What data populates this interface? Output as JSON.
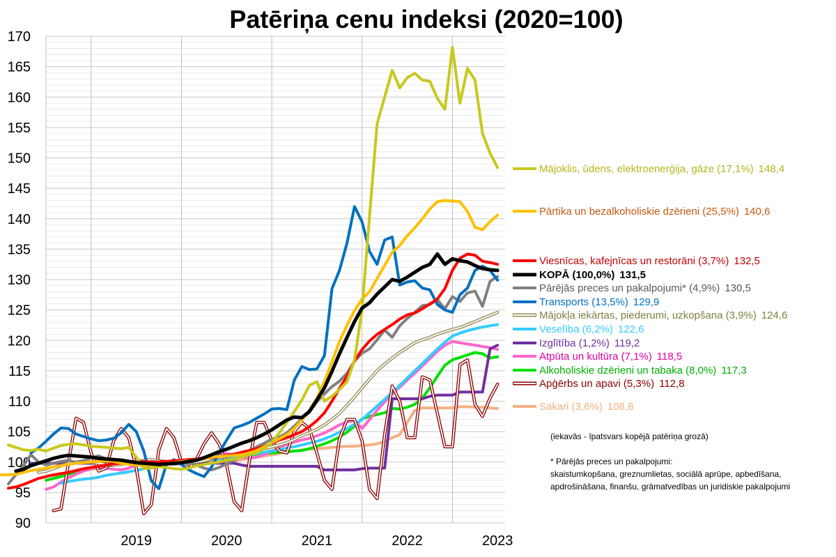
{
  "chart_data": {
    "type": "line",
    "title": "Patēriņa cenu indeksi (2020=100)",
    "xlabel": "",
    "ylabel": "",
    "ylim": [
      90,
      170
    ],
    "yticks": [
      90,
      95,
      100,
      105,
      110,
      115,
      120,
      125,
      130,
      135,
      140,
      145,
      150,
      155,
      160,
      165,
      170
    ],
    "year_labels": [
      "2019",
      "2020",
      "2021",
      "2022",
      "2023"
    ],
    "x_range": [
      "2018-07",
      "2023-07"
    ],
    "x_start_month": "2018-07",
    "grid": "horizontal minor lines, vertical year separators",
    "legend_placement": "right, at series ends",
    "series": [
      {
        "name": "Mājoklis, ūdens, elektroenerģija, gāze (17,1%)",
        "end_label": "148,4",
        "color": "#c8c81c",
        "text_color": "#b5b51a",
        "bold": false,
        "style": "solid",
        "values": [
          102.8,
          102.4,
          102.0,
          101.9,
          102.1,
          101.8,
          102.3,
          102.7,
          102.9,
          103.0,
          102.8,
          102.6,
          102.5,
          102.4,
          102.3,
          102.2,
          102.4,
          100.8,
          98.9,
          99.0,
          99.3,
          99.1,
          98.9,
          98.8,
          99.0,
          99.4,
          99.6,
          99.8,
          100.0,
          100.3,
          100.5,
          100.8,
          101.2,
          101.5,
          102.2,
          103.2,
          104.8,
          106.5,
          108.3,
          110.2,
          112.6,
          113.2,
          110.0,
          110.8,
          111.9,
          113.2,
          116.8,
          125.0,
          140.5,
          155.6,
          160.0,
          164.4,
          161.5,
          163.2,
          163.9,
          162.8,
          162.6,
          159.8,
          158.0,
          168.2,
          159.0,
          164.7,
          162.8,
          154.0,
          150.8,
          148.4
        ]
      },
      {
        "name": "Pārtika un bezalkoholiskie dzērieni (25,5%)",
        "end_label": "140,6",
        "color": "#ffc000",
        "text_color": "#c55a11",
        "bold": false,
        "style": "solid",
        "values": [
          97.9,
          97.9,
          98.0,
          98.3,
          98.6,
          98.8,
          99.0,
          99.2,
          99.4,
          99.6,
          99.8,
          99.9,
          100.0,
          100.1,
          100.2,
          100.1,
          99.8,
          99.6,
          99.5,
          99.4,
          99.5,
          99.6,
          99.8,
          99.9,
          100.1,
          100.2,
          100.4,
          100.5,
          100.8,
          100.9,
          101.0,
          101.1,
          101.2,
          101.5,
          101.9,
          102.5,
          103.2,
          103.8,
          104.5,
          105.5,
          106.9,
          108.5,
          110.5,
          113.2,
          116.5,
          119.8,
          122.5,
          124.9,
          126.8,
          128.0,
          130.2,
          132.3,
          134.5,
          135.6,
          137.2,
          138.5,
          140.0,
          141.6,
          142.8,
          143.0,
          142.9,
          142.8,
          141.2,
          138.6,
          138.2,
          139.5,
          140.6
        ]
      },
      {
        "name": "Viesnīcas, kafejnīcas un restorāni (3,7%)",
        "end_label": "132,5",
        "color": "#ff0000",
        "text_color": "#c00000",
        "bold": false,
        "style": "solid",
        "values": [
          95.7,
          95.9,
          96.3,
          96.8,
          97.3,
          97.6,
          97.9,
          98.1,
          98.3,
          98.6,
          98.9,
          99.1,
          99.3,
          99.5,
          99.7,
          99.8,
          99.9,
          100.0,
          100.1,
          100.0,
          100.0,
          100.1,
          100.2,
          100.3,
          100.4,
          100.5,
          100.6,
          100.7,
          100.9,
          101.1,
          101.3,
          101.6,
          101.9,
          102.2,
          102.6,
          103.1,
          103.6,
          104.0,
          104.5,
          105.0,
          105.8,
          106.8,
          108.1,
          110.0,
          112.1,
          114.1,
          116.6,
          118.5,
          119.9,
          121.0,
          121.8,
          122.6,
          123.5,
          124.2,
          124.5,
          125.2,
          126.0,
          126.8,
          128.5,
          131.5,
          133.5,
          134.2,
          134.0,
          133.0,
          132.8,
          132.5
        ]
      },
      {
        "name": "KOPĀ (100,0%)",
        "end_label": "131,5",
        "color": "#000000",
        "text_color": "#000000",
        "bold": true,
        "style": "solid",
        "values": [
          98.5,
          98.8,
          99.4,
          99.8,
          100.2,
          100.6,
          100.9,
          101.1,
          101.0,
          100.9,
          100.8,
          100.6,
          100.5,
          100.4,
          100.3,
          100.1,
          99.9,
          99.8,
          99.7,
          99.6,
          99.7,
          99.8,
          99.9,
          100.1,
          100.3,
          100.7,
          101.2,
          101.7,
          102.1,
          102.6,
          103.1,
          103.5,
          104.0,
          104.6,
          105.3,
          106.1,
          106.9,
          107.4,
          107.3,
          108.3,
          110.2,
          112.2,
          114.9,
          117.8,
          120.5,
          123.1,
          125.3,
          126.2,
          127.6,
          128.8,
          130.0,
          129.7,
          130.4,
          131.2,
          132.0,
          132.5,
          134.2,
          132.5,
          133.4,
          133.1,
          132.9,
          132.3,
          131.8,
          131.6,
          131.5
        ]
      },
      {
        "name": "Pārējās preces un pakalpojumi* (4,9%)",
        "end_label": "130,5",
        "color": "#808080",
        "text_color": "#595959",
        "bold": false,
        "style": "solid",
        "values": [
          96.4,
          97.9,
          99.4,
          101.2,
          100.0,
          99.5,
          99.8,
          100.1,
          100.3,
          99.9,
          100.2,
          100.7,
          101.0,
          100.5,
          100.2,
          100.0,
          99.8,
          99.7,
          99.9,
          100.1,
          100.0,
          99.7,
          99.6,
          99.8,
          99.9,
          99.5,
          99.0,
          98.7,
          99.1,
          99.7,
          100.3,
          101.1,
          101.9,
          102.5,
          103.1,
          103.8,
          104.1,
          104.8,
          105.9,
          107.1,
          108.2,
          109.9,
          111.2,
          112.4,
          113.3,
          114.6,
          116.6,
          117.9,
          118.6,
          120.1,
          121.7,
          120.5,
          122.4,
          123.6,
          124.6,
          125.7,
          125.9,
          126.7,
          125.2,
          127.2,
          126.4,
          127.8,
          128.1,
          125.6,
          129.7,
          130.5
        ]
      },
      {
        "name": "Transports (13,5%)",
        "end_label": "129,9",
        "color": "#0070c0",
        "text_color": "#0070c0",
        "bold": false,
        "style": "solid",
        "values": [
          101.5,
          102.3,
          103.4,
          104.6,
          105.6,
          105.5,
          104.6,
          104.2,
          103.8,
          103.5,
          103.6,
          103.9,
          104.8,
          106.2,
          105.0,
          101.8,
          96.9,
          95.6,
          99.6,
          100.4,
          99.6,
          98.7,
          98.1,
          97.6,
          99.2,
          101.5,
          103.6,
          105.6,
          106.0,
          106.5,
          107.2,
          107.9,
          108.7,
          108.8,
          108.6,
          113.5,
          115.7,
          115.2,
          115.3,
          117.5,
          128.5,
          131.5,
          136.0,
          142.0,
          139.5,
          134.6,
          132.5,
          136.5,
          137.0,
          129.1,
          129.6,
          129.8,
          128.6,
          128.3,
          125.9,
          125.0,
          124.6,
          127.5,
          128.6,
          131.5,
          132.2,
          131.5,
          129.9
        ]
      },
      {
        "name": "Mājokļa iekārtas, piederumi, uzkopšana (3,9%)",
        "end_label": "124,6",
        "color": "#948a54",
        "text_color": "#7f7f3f",
        "bold": false,
        "style": "outline",
        "values": [
          98.3,
          98.5,
          98.9,
          99.4,
          99.8,
          100.0,
          100.2,
          100.0,
          99.8,
          99.6,
          99.5,
          99.6,
          99.9,
          100.1,
          100.3,
          100.4,
          100.2,
          100.0,
          99.9,
          99.8,
          99.8,
          100.0,
          100.2,
          100.5,
          100.7,
          100.9,
          101.2,
          101.3,
          101.5,
          101.8,
          102.2,
          102.5,
          102.8,
          103.2,
          103.7,
          104.3,
          104.8,
          105.4,
          106.1,
          107.0,
          108.0,
          109.3,
          110.7,
          112.2,
          113.6,
          115.0,
          116.1,
          117.1,
          118.0,
          118.8,
          119.6,
          120.1,
          120.5,
          121.0,
          121.4,
          121.8,
          122.1,
          122.6,
          123.1,
          123.6,
          124.1,
          124.6
        ]
      },
      {
        "name": "Veselība (6,2%)",
        "end_label": "122,6",
        "color": "#33ccff",
        "text_color": "#33ccff",
        "bold": false,
        "style": "solid",
        "values": [
          96.5,
          96.8,
          97.0,
          97.2,
          97.3,
          97.5,
          97.8,
          98.0,
          98.2,
          98.4,
          98.6,
          98.9,
          99.2,
          99.4,
          99.6,
          99.8,
          99.9,
          100.0,
          100.1,
          100.2,
          100.4,
          100.5,
          100.6,
          100.8,
          101.0,
          101.2,
          101.4,
          101.6,
          101.8,
          102.0,
          102.3,
          102.5,
          102.8,
          103.1,
          103.4,
          103.8,
          104.3,
          104.9,
          105.5,
          106.2,
          107.0,
          108.1,
          109.2,
          110.3,
          111.4,
          112.6,
          113.8,
          115.0,
          116.2,
          117.4,
          118.6,
          119.7,
          120.7,
          121.2,
          121.6,
          121.9,
          122.2,
          122.4,
          122.6
        ]
      },
      {
        "name": "Izglītība (1,2%)",
        "end_label": "119,2",
        "color": "#7030a0",
        "text_color": "#7030a0",
        "bold": false,
        "style": "solid",
        "values": [
          99.8,
          99.8,
          99.8,
          99.8,
          99.8,
          99.8,
          99.8,
          99.8,
          99.8,
          99.8,
          99.8,
          99.8,
          99.8,
          99.8,
          99.8,
          99.8,
          99.8,
          99.8,
          99.8,
          99.8,
          99.8,
          99.8,
          99.8,
          99.8,
          99.8,
          99.8,
          99.8,
          99.8,
          99.5,
          99.3,
          99.3,
          99.3,
          99.3,
          99.3,
          99.3,
          99.3,
          99.3,
          99.3,
          99.3,
          98.7,
          98.7,
          98.7,
          98.7,
          98.7,
          98.9,
          99.0,
          99.0,
          99.0,
          110.4,
          110.4,
          110.4,
          110.4,
          110.4,
          110.8,
          111.0,
          111.0,
          111.0,
          111.5,
          111.5,
          111.5,
          111.5,
          118.6,
          119.2
        ]
      },
      {
        "name": "Atpūta un kultūra (7,1%)",
        "end_label": "118,5",
        "color": "#ff66cc",
        "text_color": "#e000a0",
        "bold": false,
        "style": "solid",
        "values": [
          95.5,
          95.9,
          96.7,
          97.4,
          98.0,
          98.5,
          98.9,
          99.2,
          99.0,
          98.8,
          98.7,
          99.0,
          99.5,
          99.9,
          100.2,
          100.3,
          100.1,
          99.8,
          99.6,
          99.8,
          100.2,
          100.6,
          101.0,
          101.3,
          101.4,
          101.1,
          100.8,
          100.6,
          100.8,
          101.2,
          101.8,
          102.4,
          102.9,
          103.3,
          103.6,
          103.9,
          104.3,
          104.8,
          105.4,
          106.1,
          106.6,
          106.8,
          105.5,
          107.0,
          108.5,
          109.9,
          111.2,
          112.3,
          113.5,
          114.6,
          115.8,
          117.0,
          118.2,
          119.2,
          119.8,
          119.6,
          119.4,
          119.2,
          119.0,
          118.8,
          118.5
        ]
      },
      {
        "name": "Alkoholiskie dzērieni un tabaka (8,0%)",
        "end_label": "117,3",
        "color": "#00e000",
        "text_color": "#00b000",
        "bold": false,
        "style": "solid",
        "values": [
          97.0,
          97.3,
          97.6,
          98.0,
          98.4,
          98.7,
          98.9,
          99.1,
          99.3,
          99.5,
          99.7,
          99.9,
          100.0,
          100.1,
          100.2,
          100.1,
          99.9,
          99.8,
          99.7,
          99.9,
          100.1,
          100.3,
          100.5,
          100.6,
          100.6,
          100.7,
          100.9,
          101.1,
          101.3,
          101.4,
          101.5,
          101.6,
          101.7,
          101.8,
          101.9,
          102.2,
          102.6,
          103.0,
          103.5,
          104.1,
          104.9,
          105.9,
          107.1,
          107.5,
          107.8,
          108.1,
          108.8,
          108.7,
          109.0,
          109.5,
          110.5,
          112.2,
          114.1,
          115.9,
          116.8,
          117.2,
          117.6,
          118.0,
          117.8,
          117.1,
          117.3
        ]
      },
      {
        "name": "Apģērbs un apavi (5,3%)",
        "end_label": "112,8",
        "color": "#8b0000",
        "text_color": "#8b0000",
        "bold": false,
        "style": "outline",
        "values": [
          92.0,
          92.3,
          100.0,
          107.2,
          106.5,
          101.5,
          98.5,
          99.0,
          103.5,
          105.5,
          104.0,
          99.0,
          91.5,
          93.0,
          102.0,
          105.5,
          104.0,
          100.0,
          99.0,
          100.5,
          103.0,
          104.8,
          103.0,
          99.5,
          93.5,
          92.0,
          100.0,
          106.5,
          106.5,
          103.5,
          101.8,
          101.5,
          105.0,
          106.5,
          105.5,
          101.5,
          97.0,
          95.5,
          103.8,
          107.0,
          107.0,
          103.5,
          95.5,
          94.0,
          104.5,
          112.5,
          110.0,
          104.0,
          104.0,
          114.0,
          113.5,
          108.0,
          102.5,
          102.5,
          116.0,
          116.8,
          109.5,
          107.5,
          110.5,
          112.8
        ]
      },
      {
        "name": "Sakari (3,6%)",
        "end_label": "108,8",
        "color": "#f4b183",
        "text_color": "#f4b183",
        "bold": false,
        "style": "solid",
        "values": [
          97.5,
          97.8,
          98.0,
          98.3,
          98.6,
          98.8,
          99.0,
          99.3,
          99.5,
          99.8,
          100.0,
          100.1,
          100.1,
          100.1,
          100.0,
          100.0,
          100.0,
          100.0,
          100.0,
          100.0,
          100.0,
          100.1,
          100.1,
          100.1,
          100.2,
          100.4,
          100.6,
          100.8,
          101.0,
          101.2,
          101.4,
          101.6,
          101.8,
          102.0,
          102.1,
          102.2,
          102.3,
          102.4,
          102.5,
          102.6,
          102.6,
          102.7,
          102.8,
          103.0,
          103.4,
          104.0,
          104.5,
          106.5,
          108.5,
          108.9,
          108.9,
          108.9,
          108.9,
          108.9,
          109.1,
          109.1,
          109.0,
          109.0,
          108.9,
          108.8
        ]
      }
    ],
    "notes": [
      "(iekavās - īpatsvars kopējā patēriņa grozā)",
      "* Pārējās preces un pakalpojumi:",
      "skaistumkopšana, greznumlietas, sociālā aprūpe, apbedīšana,",
      "apdrošināšana, finanšu, grāmatvedības un juridiskie pakalpojumi"
    ]
  }
}
